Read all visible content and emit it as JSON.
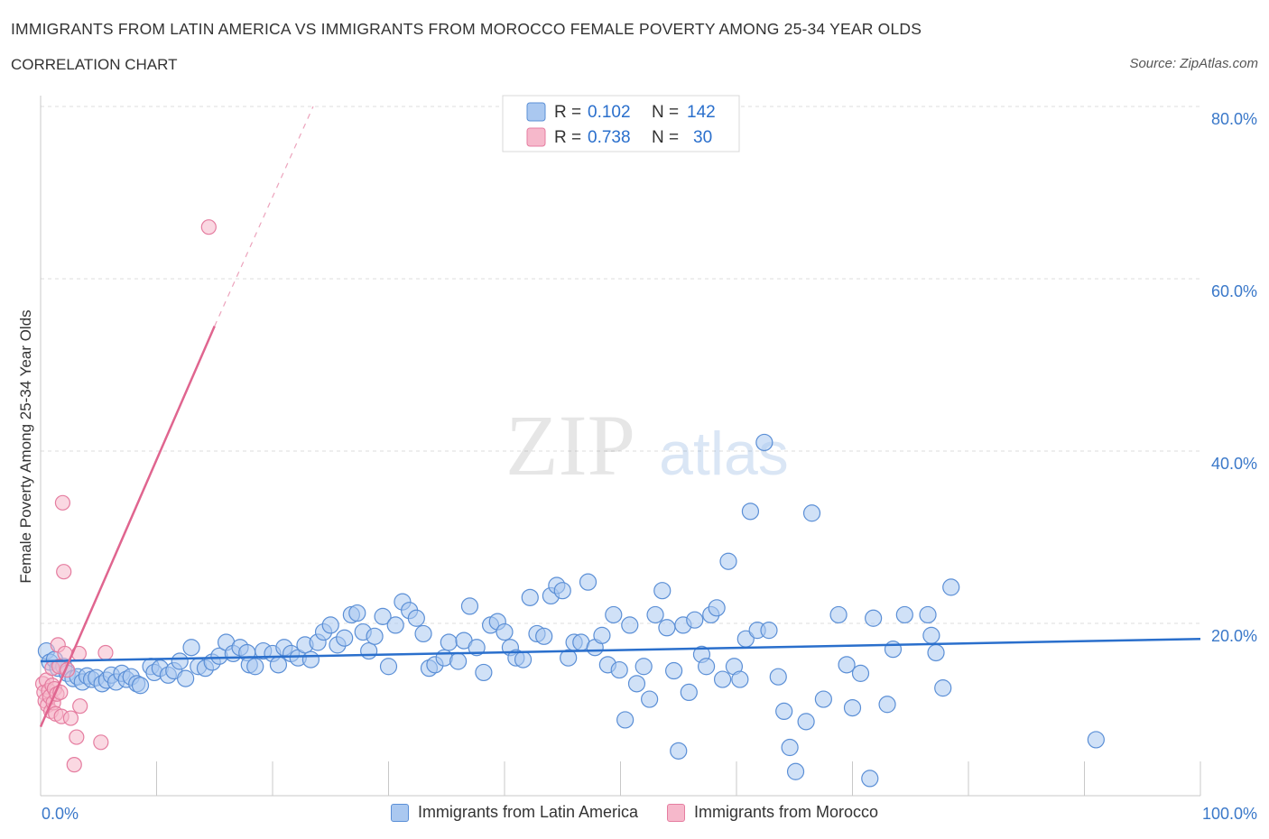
{
  "title": "IMMIGRANTS FROM LATIN AMERICA VS IMMIGRANTS FROM MOROCCO FEMALE POVERTY AMONG 25-34 YEAR OLDS",
  "subtitle": "CORRELATION CHART",
  "source": "Source: ZipAtlas.com",
  "watermark": {
    "zip": "ZIP",
    "atlas": "atlas"
  },
  "colors": {
    "blue_fill": "#aac8f0",
    "blue_stroke": "#5b8fd6",
    "blue_line": "#2a6fcc",
    "pink_fill": "#f6b8cb",
    "pink_stroke": "#e57da0",
    "pink_line": "#e0658f",
    "tick_label": "#3a78c9",
    "grid": "#dcdcdc"
  },
  "legend_top": [
    {
      "r_label": "R =",
      "r_value": "0.102",
      "n_label": "N =",
      "n_value": "142"
    },
    {
      "r_label": "R =",
      "r_value": "0.738",
      "n_label": "N =",
      "n_value": "30"
    }
  ],
  "chart_data": {
    "type": "scatter",
    "xlabel": "",
    "ylabel": "Female Poverty Among 25-34 Year Olds",
    "xlim": [
      0,
      100
    ],
    "ylim": [
      0,
      80
    ],
    "x_tick_labels": [
      "0.0%",
      "100.0%"
    ],
    "y_ticks": [
      20,
      40,
      60,
      80
    ],
    "y_tick_labels": [
      "20.0%",
      "40.0%",
      "60.0%",
      "80.0%"
    ],
    "grid": true,
    "legend_position": "bottom",
    "series": [
      {
        "name": "Immigrants from Latin America",
        "color": "#aac8f0",
        "r": 0.102,
        "n": 142,
        "trend": {
          "x": [
            0,
            100
          ],
          "y": [
            15.6,
            18.2
          ],
          "dashed_to": null
        },
        "points": [
          [
            0.5,
            16.8
          ],
          [
            0.8,
            15.5
          ],
          [
            1.2,
            15.8
          ],
          [
            1.5,
            14.8
          ],
          [
            2.0,
            15.0
          ],
          [
            2.3,
            14.2
          ],
          [
            2.8,
            13.6
          ],
          [
            3.2,
            13.8
          ],
          [
            3.6,
            13.2
          ],
          [
            4.0,
            13.9
          ],
          [
            4.4,
            13.5
          ],
          [
            4.8,
            13.7
          ],
          [
            5.3,
            13.0
          ],
          [
            5.7,
            13.4
          ],
          [
            6.1,
            14.0
          ],
          [
            6.5,
            13.2
          ],
          [
            7.0,
            14.2
          ],
          [
            7.4,
            13.5
          ],
          [
            7.8,
            13.8
          ],
          [
            8.3,
            13.0
          ],
          [
            8.6,
            12.8
          ],
          [
            9.5,
            15.0
          ],
          [
            9.8,
            14.3
          ],
          [
            10.3,
            14.8
          ],
          [
            11.0,
            14.0
          ],
          [
            11.5,
            14.5
          ],
          [
            12.0,
            15.6
          ],
          [
            12.5,
            13.6
          ],
          [
            13.0,
            17.2
          ],
          [
            13.6,
            15.0
          ],
          [
            14.2,
            14.8
          ],
          [
            14.8,
            15.5
          ],
          [
            15.4,
            16.2
          ],
          [
            16.0,
            17.8
          ],
          [
            16.6,
            16.5
          ],
          [
            17.2,
            17.2
          ],
          [
            17.8,
            16.6
          ],
          [
            18.0,
            15.2
          ],
          [
            18.5,
            15.0
          ],
          [
            19.2,
            16.8
          ],
          [
            20.0,
            16.5
          ],
          [
            20.5,
            15.2
          ],
          [
            21.0,
            17.2
          ],
          [
            21.6,
            16.5
          ],
          [
            22.2,
            16.0
          ],
          [
            22.8,
            17.5
          ],
          [
            23.3,
            15.8
          ],
          [
            23.9,
            17.8
          ],
          [
            24.4,
            19.0
          ],
          [
            25.0,
            19.8
          ],
          [
            25.6,
            17.5
          ],
          [
            26.2,
            18.3
          ],
          [
            26.8,
            21.0
          ],
          [
            27.3,
            21.2
          ],
          [
            27.8,
            19.0
          ],
          [
            28.3,
            16.8
          ],
          [
            28.8,
            18.5
          ],
          [
            29.5,
            20.8
          ],
          [
            30.0,
            15.0
          ],
          [
            30.6,
            19.8
          ],
          [
            31.2,
            22.5
          ],
          [
            31.8,
            21.5
          ],
          [
            32.4,
            20.6
          ],
          [
            33.0,
            18.8
          ],
          [
            33.5,
            14.8
          ],
          [
            34.0,
            15.2
          ],
          [
            34.8,
            16.0
          ],
          [
            35.2,
            17.8
          ],
          [
            36.0,
            15.6
          ],
          [
            36.5,
            18.0
          ],
          [
            37.0,
            22.0
          ],
          [
            37.6,
            17.2
          ],
          [
            38.2,
            14.3
          ],
          [
            38.8,
            19.8
          ],
          [
            39.4,
            20.2
          ],
          [
            40.0,
            19.0
          ],
          [
            40.5,
            17.2
          ],
          [
            41.0,
            16.0
          ],
          [
            41.6,
            15.8
          ],
          [
            42.2,
            23.0
          ],
          [
            42.8,
            18.8
          ],
          [
            43.4,
            18.5
          ],
          [
            44.0,
            23.2
          ],
          [
            44.5,
            24.4
          ],
          [
            45.0,
            23.8
          ],
          [
            45.5,
            16.0
          ],
          [
            46.0,
            17.8
          ],
          [
            46.6,
            17.8
          ],
          [
            47.2,
            24.8
          ],
          [
            47.8,
            17.2
          ],
          [
            48.4,
            18.6
          ],
          [
            48.9,
            15.2
          ],
          [
            49.4,
            21.0
          ],
          [
            49.9,
            14.6
          ],
          [
            50.4,
            8.8
          ],
          [
            50.8,
            19.8
          ],
          [
            51.4,
            13.0
          ],
          [
            52.0,
            15.0
          ],
          [
            52.5,
            11.2
          ],
          [
            53.0,
            21.0
          ],
          [
            53.6,
            23.8
          ],
          [
            54.0,
            19.5
          ],
          [
            54.6,
            14.5
          ],
          [
            55.0,
            5.2
          ],
          [
            55.4,
            19.8
          ],
          [
            55.9,
            12.0
          ],
          [
            56.4,
            20.4
          ],
          [
            57.0,
            16.4
          ],
          [
            57.4,
            15.0
          ],
          [
            57.8,
            21.0
          ],
          [
            58.3,
            21.8
          ],
          [
            58.8,
            13.5
          ],
          [
            59.3,
            27.2
          ],
          [
            59.8,
            15.0
          ],
          [
            60.3,
            13.5
          ],
          [
            60.8,
            18.2
          ],
          [
            61.2,
            33.0
          ],
          [
            61.8,
            19.2
          ],
          [
            62.4,
            41.0
          ],
          [
            62.8,
            19.2
          ],
          [
            63.6,
            13.8
          ],
          [
            64.1,
            9.8
          ],
          [
            64.6,
            5.6
          ],
          [
            65.1,
            2.8
          ],
          [
            66.0,
            8.6
          ],
          [
            66.5,
            32.8
          ],
          [
            67.5,
            11.2
          ],
          [
            68.8,
            21.0
          ],
          [
            69.5,
            15.2
          ],
          [
            70.0,
            10.2
          ],
          [
            70.7,
            14.2
          ],
          [
            71.5,
            2.0
          ],
          [
            71.8,
            20.6
          ],
          [
            73.0,
            10.6
          ],
          [
            73.5,
            17.0
          ],
          [
            74.5,
            21.0
          ],
          [
            76.5,
            21.0
          ],
          [
            76.8,
            18.6
          ],
          [
            77.2,
            16.6
          ],
          [
            77.8,
            12.5
          ],
          [
            78.5,
            24.2
          ],
          [
            91.0,
            6.5
          ]
        ]
      },
      {
        "name": "Immigrants from Morocco",
        "color": "#f6b8cb",
        "r": 0.738,
        "n": 30,
        "trend": {
          "x": [
            0,
            15.0
          ],
          "y": [
            8.0,
            54.5
          ],
          "dashed_to": [
            23.5,
            80.0
          ]
        },
        "points": [
          [
            0.2,
            13.0
          ],
          [
            0.3,
            12.0
          ],
          [
            0.4,
            11.0
          ],
          [
            0.5,
            13.4
          ],
          [
            0.6,
            10.5
          ],
          [
            0.7,
            12.2
          ],
          [
            0.8,
            11.5
          ],
          [
            0.9,
            9.8
          ],
          [
            1.0,
            14.8
          ],
          [
            1.0,
            12.8
          ],
          [
            1.1,
            10.8
          ],
          [
            1.2,
            12.4
          ],
          [
            1.3,
            9.5
          ],
          [
            1.4,
            11.8
          ],
          [
            1.5,
            17.5
          ],
          [
            1.6,
            15.0
          ],
          [
            1.7,
            12.0
          ],
          [
            1.8,
            9.2
          ],
          [
            1.9,
            34.0
          ],
          [
            2.0,
            26.0
          ],
          [
            2.1,
            16.5
          ],
          [
            2.3,
            14.6
          ],
          [
            2.6,
            9.0
          ],
          [
            2.9,
            3.6
          ],
          [
            3.1,
            6.8
          ],
          [
            3.3,
            16.5
          ],
          [
            3.4,
            10.4
          ],
          [
            5.2,
            6.2
          ],
          [
            5.6,
            16.6
          ],
          [
            14.5,
            66.0
          ]
        ]
      }
    ]
  }
}
